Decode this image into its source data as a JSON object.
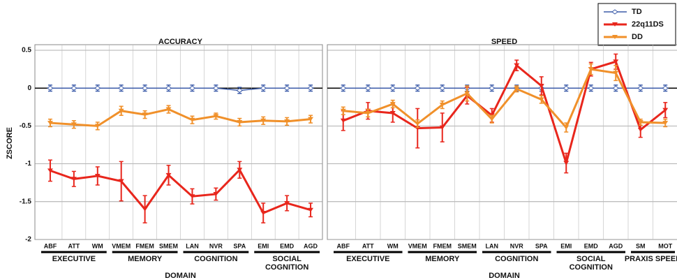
{
  "chart_data": [
    {
      "type": "line",
      "title": "ACCURACY",
      "y_label": "ZSCORE",
      "x_label": "DOMAIN",
      "categories": [
        "ABF",
        "ATT",
        "WM",
        "VMEM",
        "FMEM",
        "SMEM",
        "LAN",
        "NVR",
        "SPA",
        "EMI",
        "EMD",
        "AGD"
      ],
      "groups": [
        {
          "label": "EXECUTIVE",
          "size": 3
        },
        {
          "label": "MEMORY",
          "size": 3
        },
        {
          "label": "COGNITION",
          "size": 3
        },
        {
          "label": "SOCIAL COGNITION",
          "size": 3
        }
      ],
      "ylim": [
        -2,
        0.5
      ],
      "yticks": [
        -2,
        -1.5,
        -1,
        -0.5,
        0,
        0.5
      ],
      "grid": true,
      "tick_labels": true,
      "legend": "top-right",
      "series": [
        {
          "name": "TD",
          "color": "#3b5ba9",
          "marker": "diamond",
          "values": [
            0,
            0,
            0,
            0,
            0,
            0,
            0,
            0,
            -0.03,
            0,
            0,
            0
          ],
          "errors": [
            0.04,
            0.04,
            0.04,
            0.04,
            0.04,
            0.04,
            0.04,
            0.04,
            0.04,
            0.04,
            0.04,
            0.04
          ]
        },
        {
          "name": "22q11DS",
          "color": "#e8261c",
          "marker": "triangle",
          "values": [
            -1.09,
            -1.2,
            -1.16,
            -1.23,
            -1.6,
            -1.15,
            -1.43,
            -1.4,
            -1.08,
            -1.65,
            -1.52,
            -1.61
          ],
          "errors": [
            0.14,
            0.1,
            0.12,
            0.26,
            0.18,
            0.13,
            0.1,
            0.08,
            0.11,
            0.13,
            0.1,
            0.09
          ]
        },
        {
          "name": "DD",
          "color": "#f0902a",
          "marker": "triangle",
          "values": [
            -0.46,
            -0.48,
            -0.5,
            -0.3,
            -0.35,
            -0.28,
            -0.42,
            -0.37,
            -0.45,
            -0.43,
            -0.44,
            -0.41
          ],
          "errors": [
            0.05,
            0.05,
            0.05,
            0.06,
            0.05,
            0.05,
            0.05,
            0.04,
            0.05,
            0.05,
            0.05,
            0.05
          ]
        }
      ]
    },
    {
      "type": "line",
      "title": "SPEED",
      "x_label": "DOMAIN",
      "categories": [
        "ABF",
        "ATT",
        "WM",
        "VMEM",
        "FMEM",
        "SMEM",
        "LAN",
        "NVR",
        "SPA",
        "EMI",
        "EMD",
        "AGD",
        "SM",
        "MOT"
      ],
      "groups": [
        {
          "label": "EXECUTIVE",
          "size": 3
        },
        {
          "label": "MEMORY",
          "size": 3
        },
        {
          "label": "COGNITION",
          "size": 3
        },
        {
          "label": "SOCIAL COGNITION",
          "size": 3
        },
        {
          "label": "PRAXIS SPEED",
          "size": 2
        }
      ],
      "ylim": [
        -2,
        0.5
      ],
      "yticks": [
        -2,
        -1.5,
        -1,
        -0.5,
        0,
        0.5
      ],
      "grid": true,
      "tick_labels": false,
      "series": [
        {
          "name": "TD",
          "color": "#3b5ba9",
          "marker": "diamond",
          "values": [
            0,
            0,
            0,
            0,
            0,
            0,
            0,
            0,
            0,
            0,
            0,
            0,
            0,
            0
          ],
          "errors": [
            0.04,
            0.04,
            0.04,
            0.04,
            0.04,
            0.04,
            0.04,
            0.04,
            0.04,
            0.04,
            0.04,
            0.04,
            0.04,
            0.04
          ]
        },
        {
          "name": "22q11DS",
          "color": "#e8261c",
          "marker": "triangle",
          "values": [
            -0.43,
            -0.3,
            -0.33,
            -0.53,
            -0.52,
            -0.1,
            -0.36,
            0.3,
            0.03,
            -0.99,
            0.25,
            0.35,
            -0.55,
            -0.29
          ],
          "errors": [
            0.13,
            0.11,
            0.12,
            0.26,
            0.19,
            0.11,
            0.09,
            0.07,
            0.12,
            0.13,
            0.09,
            0.1,
            0.1,
            0.1
          ]
        },
        {
          "name": "DD",
          "color": "#f0902a",
          "marker": "triangle",
          "values": [
            -0.3,
            -0.33,
            -0.21,
            -0.47,
            -0.22,
            -0.07,
            -0.41,
            -0.01,
            -0.15,
            -0.52,
            0.25,
            0.2,
            -0.45,
            -0.46
          ],
          "errors": [
            0.05,
            0.05,
            0.05,
            0.05,
            0.05,
            0.1,
            0.05,
            0.04,
            0.05,
            0.06,
            0.07,
            0.1,
            0.04,
            0.05
          ]
        }
      ]
    }
  ]
}
